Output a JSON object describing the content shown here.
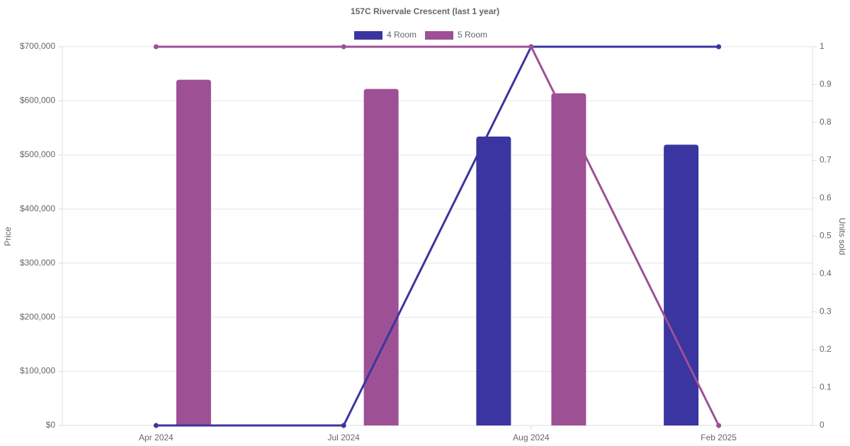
{
  "chart_data": {
    "type": "bar-line",
    "title": "157C Rivervale Crescent (last 1 year)",
    "y_label": "Price",
    "y2_label": "Units sold",
    "categories": [
      "Apr 2024",
      "Jul 2024",
      "Aug 2024",
      "Feb 2025"
    ],
    "series": [
      {
        "name": "4 Room",
        "color": "#3a35a0",
        "values": [
          null,
          null,
          534000,
          519000
        ],
        "units": [
          0,
          0,
          1,
          1
        ]
      },
      {
        "name": "5 Room",
        "color": "#9e5094",
        "values": [
          639000,
          622000,
          614000,
          null
        ],
        "units": [
          1,
          1,
          1,
          0
        ]
      }
    ],
    "ylim": [
      0,
      700000
    ],
    "yticks": [
      {
        "value": 0,
        "label": "$0"
      },
      {
        "value": 100000,
        "label": "$100,000"
      },
      {
        "value": 200000,
        "label": "$200,000"
      },
      {
        "value": 300000,
        "label": "$300,000"
      },
      {
        "value": 400000,
        "label": "$400,000"
      },
      {
        "value": 500000,
        "label": "$500,000"
      },
      {
        "value": 600000,
        "label": "$600,000"
      },
      {
        "value": 700000,
        "label": "$700,000"
      }
    ],
    "y2lim": [
      0,
      1
    ],
    "y2ticks": [
      0,
      0.1,
      0.2,
      0.3,
      0.4,
      0.5,
      0.6,
      0.7,
      0.8,
      0.9,
      1
    ],
    "grid": true,
    "legend": "top"
  }
}
